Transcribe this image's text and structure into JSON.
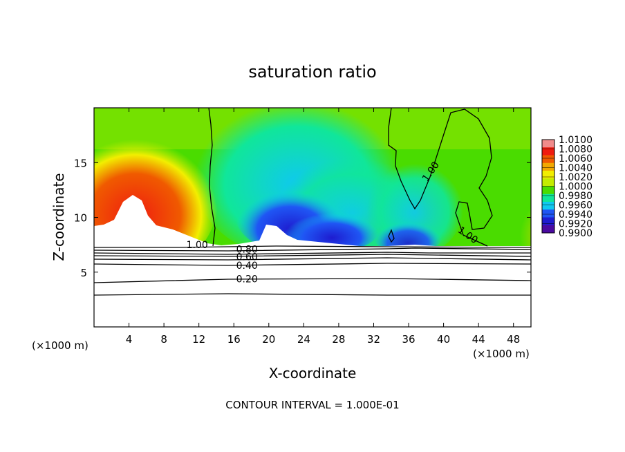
{
  "chart_data": {
    "type": "contour",
    "title": "saturation ratio",
    "xlabel": "X-coordinate",
    "ylabel": "Z-coordinate",
    "x_unit_left": "(×1000 m)",
    "x_unit_right": "(×1000 m)",
    "footer": "CONTOUR INTERVAL = 1.000E-01",
    "xlim": [
      0,
      50
    ],
    "ylim": [
      0,
      20
    ],
    "x_ticks": [
      "4",
      "8",
      "12",
      "16",
      "20",
      "24",
      "28",
      "32",
      "36",
      "40",
      "44",
      "48"
    ],
    "x_tick_values": [
      4,
      8,
      12,
      16,
      20,
      24,
      28,
      32,
      36,
      40,
      44,
      48
    ],
    "y_ticks": [
      "5",
      "10",
      "15"
    ],
    "y_tick_values": [
      5,
      10,
      15
    ],
    "colorbar": {
      "labels": [
        "1.0100",
        "1.0080",
        "1.0060",
        "1.0040",
        "1.0020",
        "1.0000",
        "0.9980",
        "0.9960",
        "0.9940",
        "0.9920",
        "0.9900"
      ],
      "values": [
        1.01,
        1.008,
        1.006,
        1.004,
        1.002,
        1.0,
        0.998,
        0.996,
        0.994,
        0.992,
        0.99
      ],
      "colors": [
        "#f08b8b",
        "#ef1c10",
        "#f05a00",
        "#f2a800",
        "#f2ee00",
        "#c4ec00",
        "#4adc00",
        "#10e69a",
        "#0fc8f0",
        "#1f56f4",
        "#1e1cd0",
        "#4a0aa0"
      ]
    },
    "contour_labels": [
      {
        "text": "1.00",
        "x": 11.8,
        "z": 7.5
      },
      {
        "text": "0.80",
        "x": 17.5,
        "z": 7.1
      },
      {
        "text": "0.60",
        "x": 17.5,
        "z": 6.4
      },
      {
        "text": "0.40",
        "x": 17.5,
        "z": 5.6
      },
      {
        "text": "0.20",
        "x": 17.5,
        "z": 4.4
      },
      {
        "text": "1.00",
        "x": 38.5,
        "z": 14.2
      },
      {
        "text": "1.00",
        "x": 42.8,
        "z": 8.4
      }
    ],
    "line_contour_levels": [
      0.2,
      0.4,
      0.6,
      0.8,
      1.0
    ],
    "line_contour_heights": [
      3.0,
      4.4,
      5.6,
      6.0,
      6.5,
      7.0
    ]
  }
}
